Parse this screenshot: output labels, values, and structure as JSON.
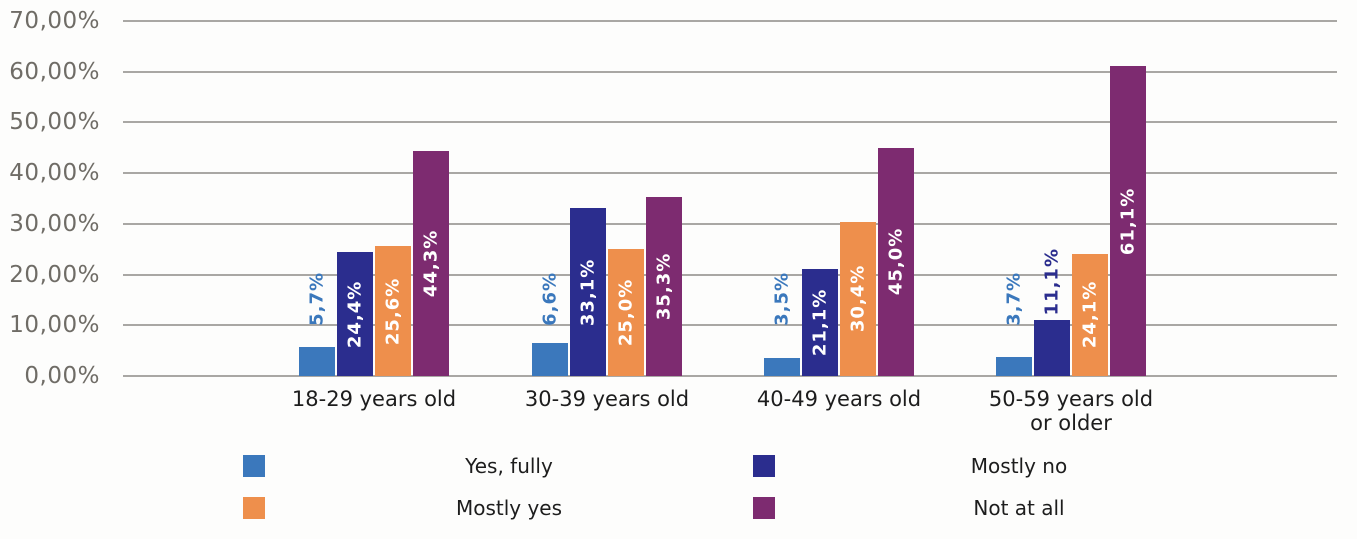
{
  "chart_data": {
    "type": "bar",
    "title": "",
    "xlabel": "",
    "ylabel": "",
    "categories": [
      "18-29 years old",
      "30-39 years old",
      "40-49 years old",
      "50-59 years old\nor older"
    ],
    "series": [
      {
        "name": "Yes, fully",
        "color": "#3B78BC",
        "values": [
          5.7,
          6.6,
          3.5,
          3.7
        ],
        "labels": [
          "5,7%",
          "6,6%",
          "3,5%",
          "3,7%"
        ]
      },
      {
        "name": "Mostly no",
        "color": "#2B2D8E",
        "values": [
          24.4,
          33.1,
          21.1,
          11.1
        ],
        "labels": [
          "24,4%",
          "33,1%",
          "21,1%",
          "11,1%"
        ]
      },
      {
        "name": "Mostly yes",
        "color": "#EE8F4C",
        "values": [
          25.6,
          25.0,
          30.4,
          24.1
        ],
        "labels": [
          "25,6%",
          "25,0%",
          "30,4%",
          "24,1%"
        ]
      },
      {
        "name": "Not at all",
        "color": "#7D2B70",
        "values": [
          44.3,
          35.3,
          45.0,
          61.1
        ],
        "labels": [
          "44,3%",
          "35,3%",
          "45,0%",
          "61,1%"
        ]
      }
    ],
    "y_axis": {
      "min": 0,
      "max": 70,
      "step": 10,
      "tick_labels": [
        "0,00%",
        "10,00%",
        "20,00%",
        "30,00%",
        "40,00%",
        "50,00%",
        "60,00%",
        "70,00%"
      ]
    },
    "grid": true,
    "legend_position": "bottom",
    "colors": {
      "gridline": "#a9a7a4",
      "y_tick_text": "#6f6c66",
      "x_tick_text": "#1d1d1d",
      "legend_text": "#1d1d1d",
      "background": "#fdfdfc",
      "inside_label_text": "#ffffff"
    }
  }
}
